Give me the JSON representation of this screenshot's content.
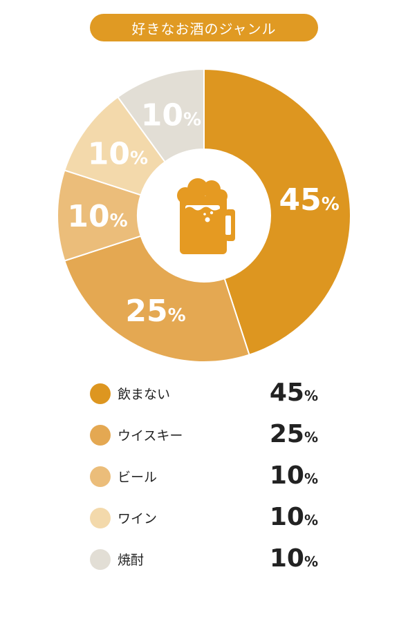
{
  "title": "好きなお酒のジャンル",
  "unit": "%",
  "icon": "beer-mug-icon",
  "colors": {
    "accent": "#e09a23",
    "icon": "#e59a22"
  },
  "chart_data": {
    "type": "pie",
    "title": "好きなお酒のジャンル",
    "categories": [
      "飲まない",
      "ウイスキー",
      "ビール",
      "ワイン",
      "焼酎"
    ],
    "values": [
      45,
      25,
      10,
      10,
      10
    ],
    "colors": [
      "#dd9620",
      "#e4a852",
      "#ebbd7a",
      "#f3d9ab",
      "#e2ded5"
    ]
  }
}
